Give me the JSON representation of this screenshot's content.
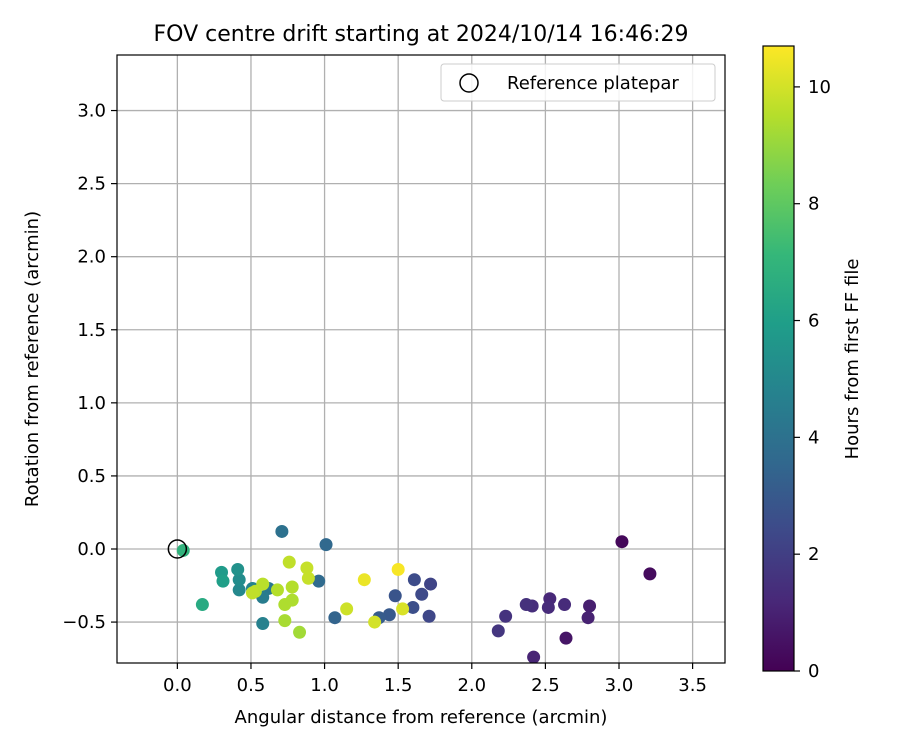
{
  "chart_data": {
    "type": "scatter",
    "title": "FOV centre drift starting at 2024/10/14 16:46:29",
    "xlabel": "Angular distance from reference (arcmin)",
    "ylabel": "Rotation from reference (arcmin)",
    "xlim": [
      -0.41,
      3.72
    ],
    "ylim": [
      -0.78,
      3.38
    ],
    "xticks": [
      0.0,
      0.5,
      1.0,
      1.5,
      2.0,
      2.5,
      3.0,
      3.5
    ],
    "xtick_labels": [
      "0.0",
      "0.5",
      "1.0",
      "1.5",
      "2.0",
      "2.5",
      "3.0",
      "3.5"
    ],
    "yticks": [
      -0.5,
      0.0,
      0.5,
      1.0,
      1.5,
      2.0,
      2.5,
      3.0
    ],
    "ytick_labels": [
      "−0.5",
      "0.0",
      "0.5",
      "1.0",
      "1.5",
      "2.0",
      "2.5",
      "3.0"
    ],
    "grid": true,
    "legend_position": "top-right",
    "legend_entries": [
      "Reference platepar"
    ],
    "colormap": "viridis",
    "colormap_stops": [
      "#440154",
      "#482878",
      "#3e4989",
      "#31688e",
      "#26828e",
      "#1f9e89",
      "#35b779",
      "#6ece58",
      "#b5de2b",
      "#fde725"
    ],
    "colorbar": {
      "label": "Hours from first FF file",
      "range": [
        0,
        10.7
      ],
      "ticks": [
        0,
        2,
        4,
        6,
        8,
        10
      ],
      "tick_labels": [
        "0",
        "2",
        "4",
        "6",
        "8",
        "10"
      ]
    },
    "reference_point": {
      "x": 0.0,
      "y": 0.0,
      "label": "Reference platepar"
    },
    "points": [
      {
        "x": 3.02,
        "y": 0.05,
        "hours": 0.2
      },
      {
        "x": 3.21,
        "y": -0.17,
        "hours": 0.3
      },
      {
        "x": 2.64,
        "y": -0.61,
        "hours": 0.6
      },
      {
        "x": 2.8,
        "y": -0.39,
        "hours": 0.9
      },
      {
        "x": 2.79,
        "y": -0.47,
        "hours": 1.0
      },
      {
        "x": 2.42,
        "y": -0.74,
        "hours": 1.1
      },
      {
        "x": 2.53,
        "y": -0.34,
        "hours": 1.2
      },
      {
        "x": 2.63,
        "y": -0.38,
        "hours": 1.3
      },
      {
        "x": 2.52,
        "y": -0.4,
        "hours": 1.3
      },
      {
        "x": 2.41,
        "y": -0.39,
        "hours": 1.4
      },
      {
        "x": 2.37,
        "y": -0.38,
        "hours": 1.5
      },
      {
        "x": 2.23,
        "y": -0.46,
        "hours": 1.6
      },
      {
        "x": 2.18,
        "y": -0.56,
        "hours": 1.7
      },
      {
        "x": 1.72,
        "y": -0.24,
        "hours": 2.2
      },
      {
        "x": 1.71,
        "y": -0.46,
        "hours": 2.3
      },
      {
        "x": 1.66,
        "y": -0.31,
        "hours": 2.4
      },
      {
        "x": 1.61,
        "y": -0.21,
        "hours": 2.5
      },
      {
        "x": 1.6,
        "y": -0.4,
        "hours": 2.6
      },
      {
        "x": 1.48,
        "y": -0.32,
        "hours": 2.8
      },
      {
        "x": 1.44,
        "y": -0.45,
        "hours": 3.0
      },
      {
        "x": 1.37,
        "y": -0.47,
        "hours": 3.1
      },
      {
        "x": 1.07,
        "y": -0.47,
        "hours": 3.4
      },
      {
        "x": 1.01,
        "y": 0.03,
        "hours": 3.6
      },
      {
        "x": 0.96,
        "y": -0.22,
        "hours": 3.7
      },
      {
        "x": 0.71,
        "y": 0.12,
        "hours": 4.0
      },
      {
        "x": 0.62,
        "y": -0.27,
        "hours": 4.3
      },
      {
        "x": 0.58,
        "y": -0.33,
        "hours": 4.5
      },
      {
        "x": 0.58,
        "y": -0.51,
        "hours": 4.7
      },
      {
        "x": 0.51,
        "y": -0.27,
        "hours": 4.8
      },
      {
        "x": 0.42,
        "y": -0.28,
        "hours": 5.0
      },
      {
        "x": 0.42,
        "y": -0.21,
        "hours": 5.2
      },
      {
        "x": 0.41,
        "y": -0.14,
        "hours": 5.4
      },
      {
        "x": 0.3,
        "y": -0.16,
        "hours": 5.8
      },
      {
        "x": 0.31,
        "y": -0.22,
        "hours": 6.0
      },
      {
        "x": 0.17,
        "y": -0.38,
        "hours": 6.5
      },
      {
        "x": 0.04,
        "y": -0.01,
        "hours": 6.9
      },
      {
        "x": 0.83,
        "y": -0.57,
        "hours": 9.2
      },
      {
        "x": 0.73,
        "y": -0.49,
        "hours": 9.3
      },
      {
        "x": 0.73,
        "y": -0.38,
        "hours": 9.4
      },
      {
        "x": 0.78,
        "y": -0.35,
        "hours": 9.4
      },
      {
        "x": 0.78,
        "y": -0.26,
        "hours": 9.5
      },
      {
        "x": 0.68,
        "y": -0.28,
        "hours": 9.5
      },
      {
        "x": 0.58,
        "y": -0.24,
        "hours": 9.6
      },
      {
        "x": 0.53,
        "y": -0.29,
        "hours": 9.6
      },
      {
        "x": 0.51,
        "y": -0.3,
        "hours": 9.7
      },
      {
        "x": 0.76,
        "y": -0.09,
        "hours": 9.7
      },
      {
        "x": 0.88,
        "y": -0.13,
        "hours": 9.8
      },
      {
        "x": 0.89,
        "y": -0.2,
        "hours": 9.8
      },
      {
        "x": 1.15,
        "y": -0.41,
        "hours": 9.9
      },
      {
        "x": 1.34,
        "y": -0.5,
        "hours": 10.0
      },
      {
        "x": 1.53,
        "y": -0.41,
        "hours": 10.1
      },
      {
        "x": 1.27,
        "y": -0.21,
        "hours": 10.4
      },
      {
        "x": 1.5,
        "y": -0.14,
        "hours": 10.6
      }
    ]
  }
}
